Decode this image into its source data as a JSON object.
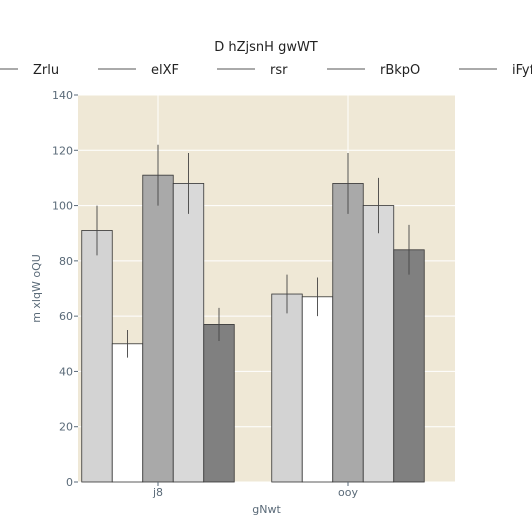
{
  "chart_data": {
    "type": "bar",
    "title": "D hZjsnH gwWT",
    "xlabel": "gNwt",
    "ylabel": "m xlqW oQU",
    "categories": [
      "j8",
      "ooy"
    ],
    "ylim": [
      0,
      140
    ],
    "yticks": [
      0,
      20,
      40,
      60,
      80,
      100,
      120,
      140
    ],
    "grid": true,
    "legend_position": "top",
    "series": [
      {
        "name": "Zrlu",
        "values": [
          91,
          68
        ],
        "errors": [
          9,
          7
        ],
        "color": "#d3d3d3"
      },
      {
        "name": "elXF",
        "values": [
          50,
          67
        ],
        "errors": [
          5,
          7
        ],
        "color": "#ffffff"
      },
      {
        "name": "rsr",
        "values": [
          111,
          108
        ],
        "errors": [
          11,
          11
        ],
        "color": "#a9a9a9"
      },
      {
        "name": "rBkpO",
        "values": [
          108,
          100
        ],
        "errors": [
          11,
          10
        ],
        "color": "#d9d9d9"
      },
      {
        "name": "iFyf",
        "values": [
          57,
          84
        ],
        "errors": [
          6,
          9
        ],
        "color": "#808080"
      }
    ],
    "plot_background": "#efe8d6",
    "grid_color": "#ffffff"
  }
}
